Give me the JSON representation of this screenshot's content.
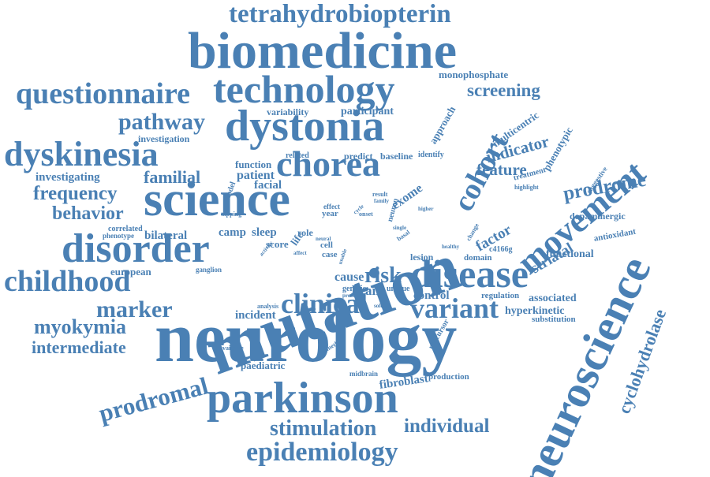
{
  "color": "#4a80b4",
  "words": [
    {
      "text": "tetrahydrobiopterin"
    },
    {
      "text": "biomedicine"
    },
    {
      "text": "questionnaire"
    },
    {
      "text": "technology"
    },
    {
      "text": "monophosphate"
    },
    {
      "text": "screening"
    },
    {
      "text": "pathway"
    },
    {
      "text": "dystonia"
    },
    {
      "text": "variability"
    },
    {
      "text": "participant"
    },
    {
      "text": "approach"
    },
    {
      "text": "multicentric"
    },
    {
      "text": "phenotypic"
    },
    {
      "text": "movement"
    },
    {
      "text": "neuroscience"
    },
    {
      "text": "investigation"
    },
    {
      "text": "dyskinesia"
    },
    {
      "text": "chorea"
    },
    {
      "text": "predict"
    },
    {
      "text": "baseline"
    },
    {
      "text": "identify"
    },
    {
      "text": "cohort"
    },
    {
      "text": "indicator"
    },
    {
      "text": "feature"
    },
    {
      "text": "treatment"
    },
    {
      "text": "highlight"
    },
    {
      "text": "suggestive"
    },
    {
      "text": "investigating"
    },
    {
      "text": "familial"
    },
    {
      "text": "function"
    },
    {
      "text": "related"
    },
    {
      "text": "patient"
    },
    {
      "text": "facial"
    },
    {
      "text": "frequency"
    },
    {
      "text": "model"
    },
    {
      "text": "science"
    },
    {
      "text": "result"
    },
    {
      "text": "family"
    },
    {
      "text": "exome"
    },
    {
      "text": "neuron"
    },
    {
      "text": "prodrome"
    },
    {
      "text": "behavior"
    },
    {
      "text": "tapping"
    },
    {
      "text": "effect"
    },
    {
      "text": "year"
    },
    {
      "text": "cycle"
    },
    {
      "text": "onset"
    },
    {
      "text": "higher"
    },
    {
      "text": "dopaminergic"
    },
    {
      "text": "correlated"
    },
    {
      "text": "mutation"
    },
    {
      "text": "phenotype"
    },
    {
      "text": "bilateral"
    },
    {
      "text": "camp"
    },
    {
      "text": "sleep"
    },
    {
      "text": "factor"
    },
    {
      "text": "antioxidant"
    },
    {
      "text": "disorder"
    },
    {
      "text": "score"
    },
    {
      "text": "life"
    },
    {
      "text": "role"
    },
    {
      "text": "activity"
    },
    {
      "text": "neural"
    },
    {
      "text": "single"
    },
    {
      "text": "basal"
    },
    {
      "text": "change"
    },
    {
      "text": "healthy"
    },
    {
      "text": "striatal"
    },
    {
      "text": "affect"
    },
    {
      "text": "cell"
    },
    {
      "text": "case"
    },
    {
      "text": "unable"
    },
    {
      "text": "lesion"
    },
    {
      "text": "domain"
    },
    {
      "text": "c4166g"
    },
    {
      "text": "functional"
    },
    {
      "text": "ganglion"
    },
    {
      "text": "european"
    },
    {
      "text": "childhood"
    },
    {
      "text": "disease"
    },
    {
      "text": "risk"
    },
    {
      "text": "cause"
    },
    {
      "text": "brain"
    },
    {
      "text": "genetic"
    },
    {
      "text": "present"
    },
    {
      "text": "unique"
    },
    {
      "text": "control"
    },
    {
      "text": "regulation"
    },
    {
      "text": "associated"
    },
    {
      "text": "cyclohydrolase"
    },
    {
      "text": "marker"
    },
    {
      "text": "clinical"
    },
    {
      "text": "variant"
    },
    {
      "text": "analysis"
    },
    {
      "text": "incident"
    },
    {
      "text": "soluble"
    },
    {
      "text": "hyperkinetic"
    },
    {
      "text": "substitution"
    },
    {
      "text": "myokymia"
    },
    {
      "text": "neurology"
    },
    {
      "text": "precursor"
    },
    {
      "text": "intermediate"
    },
    {
      "text": "available"
    },
    {
      "text": "method"
    },
    {
      "text": "paediatric"
    },
    {
      "text": "midbrain"
    },
    {
      "text": "fibroblast"
    },
    {
      "text": "production"
    },
    {
      "text": "prodromal"
    },
    {
      "text": "parkinson"
    },
    {
      "text": "stimulation"
    },
    {
      "text": "individual"
    },
    {
      "text": "epidemiology"
    }
  ]
}
